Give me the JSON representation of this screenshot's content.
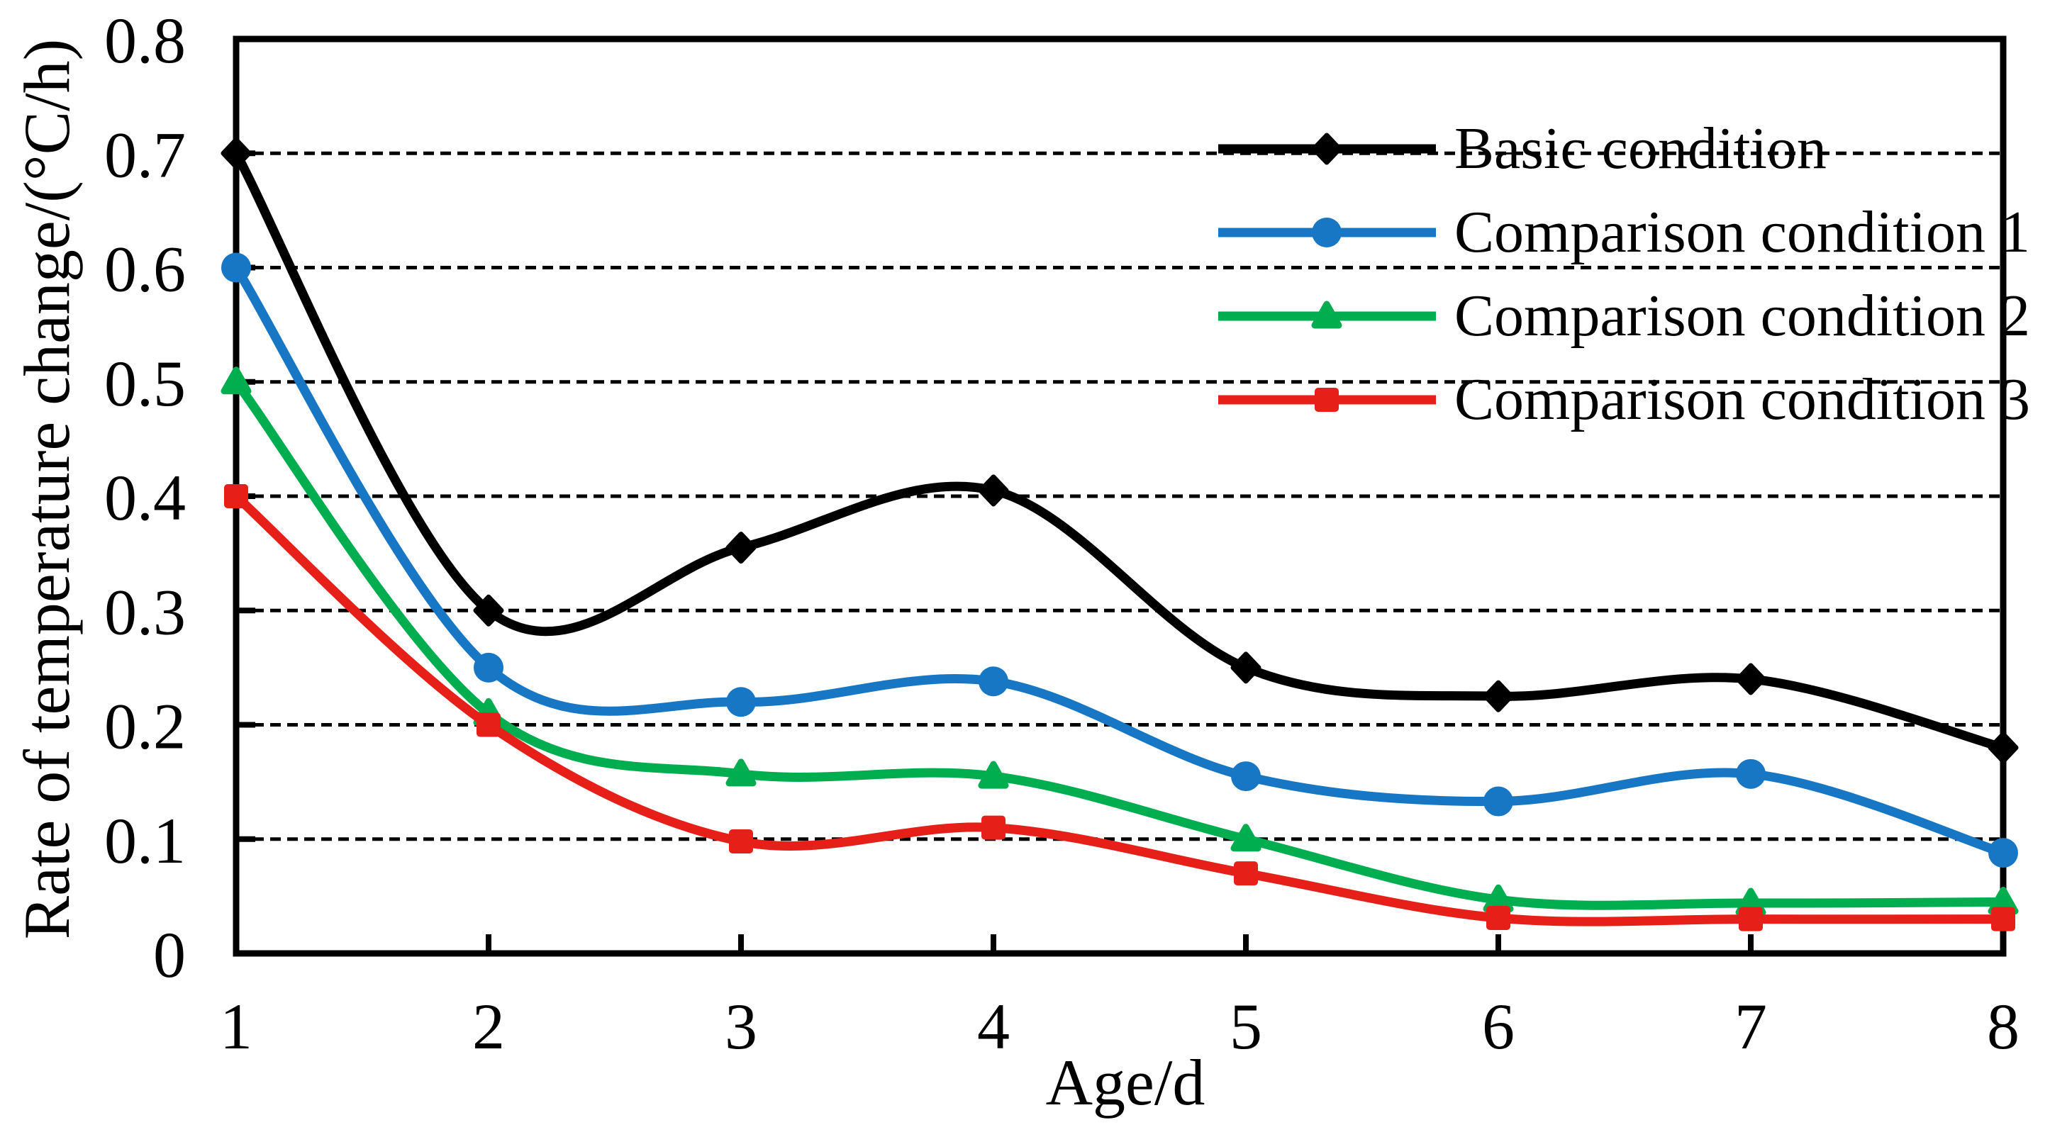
{
  "chart_data": {
    "type": "line",
    "line_style": "smoothed",
    "title": "",
    "xlabel": "Age/d",
    "ylabel": "Rate of temperature change/(°C/h)",
    "x": [
      1,
      2,
      3,
      4,
      5,
      6,
      7,
      8
    ],
    "xlim": [
      1,
      8
    ],
    "ylim": [
      0,
      0.8
    ],
    "ytick_labels": [
      "0",
      "0.1",
      "0.2",
      "0.3",
      "0.4",
      "0.5",
      "0.6",
      "0.7",
      "0.8"
    ],
    "grid": "horizontal-dashed",
    "legend_position": "inside-top-right",
    "series": [
      {
        "name": "Basic condition",
        "color": "#000000",
        "marker": "diamond",
        "values": [
          0.7,
          0.3,
          0.355,
          0.405,
          0.25,
          0.225,
          0.24,
          0.18
        ]
      },
      {
        "name": "Comparison condition 1",
        "color": "#1777C4",
        "marker": "circle",
        "values": [
          0.6,
          0.25,
          0.22,
          0.238,
          0.155,
          0.133,
          0.157,
          0.088
        ]
      },
      {
        "name": "Comparison condition 2",
        "color": "#00AD4F",
        "marker": "triangle",
        "values": [
          0.5,
          0.21,
          0.157,
          0.155,
          0.1,
          0.047,
          0.044,
          0.045
        ]
      },
      {
        "name": "Comparison condition 3",
        "color": "#E62019",
        "marker": "square",
        "values": [
          0.4,
          0.2,
          0.098,
          0.11,
          0.07,
          0.031,
          0.03,
          0.03
        ]
      }
    ]
  }
}
